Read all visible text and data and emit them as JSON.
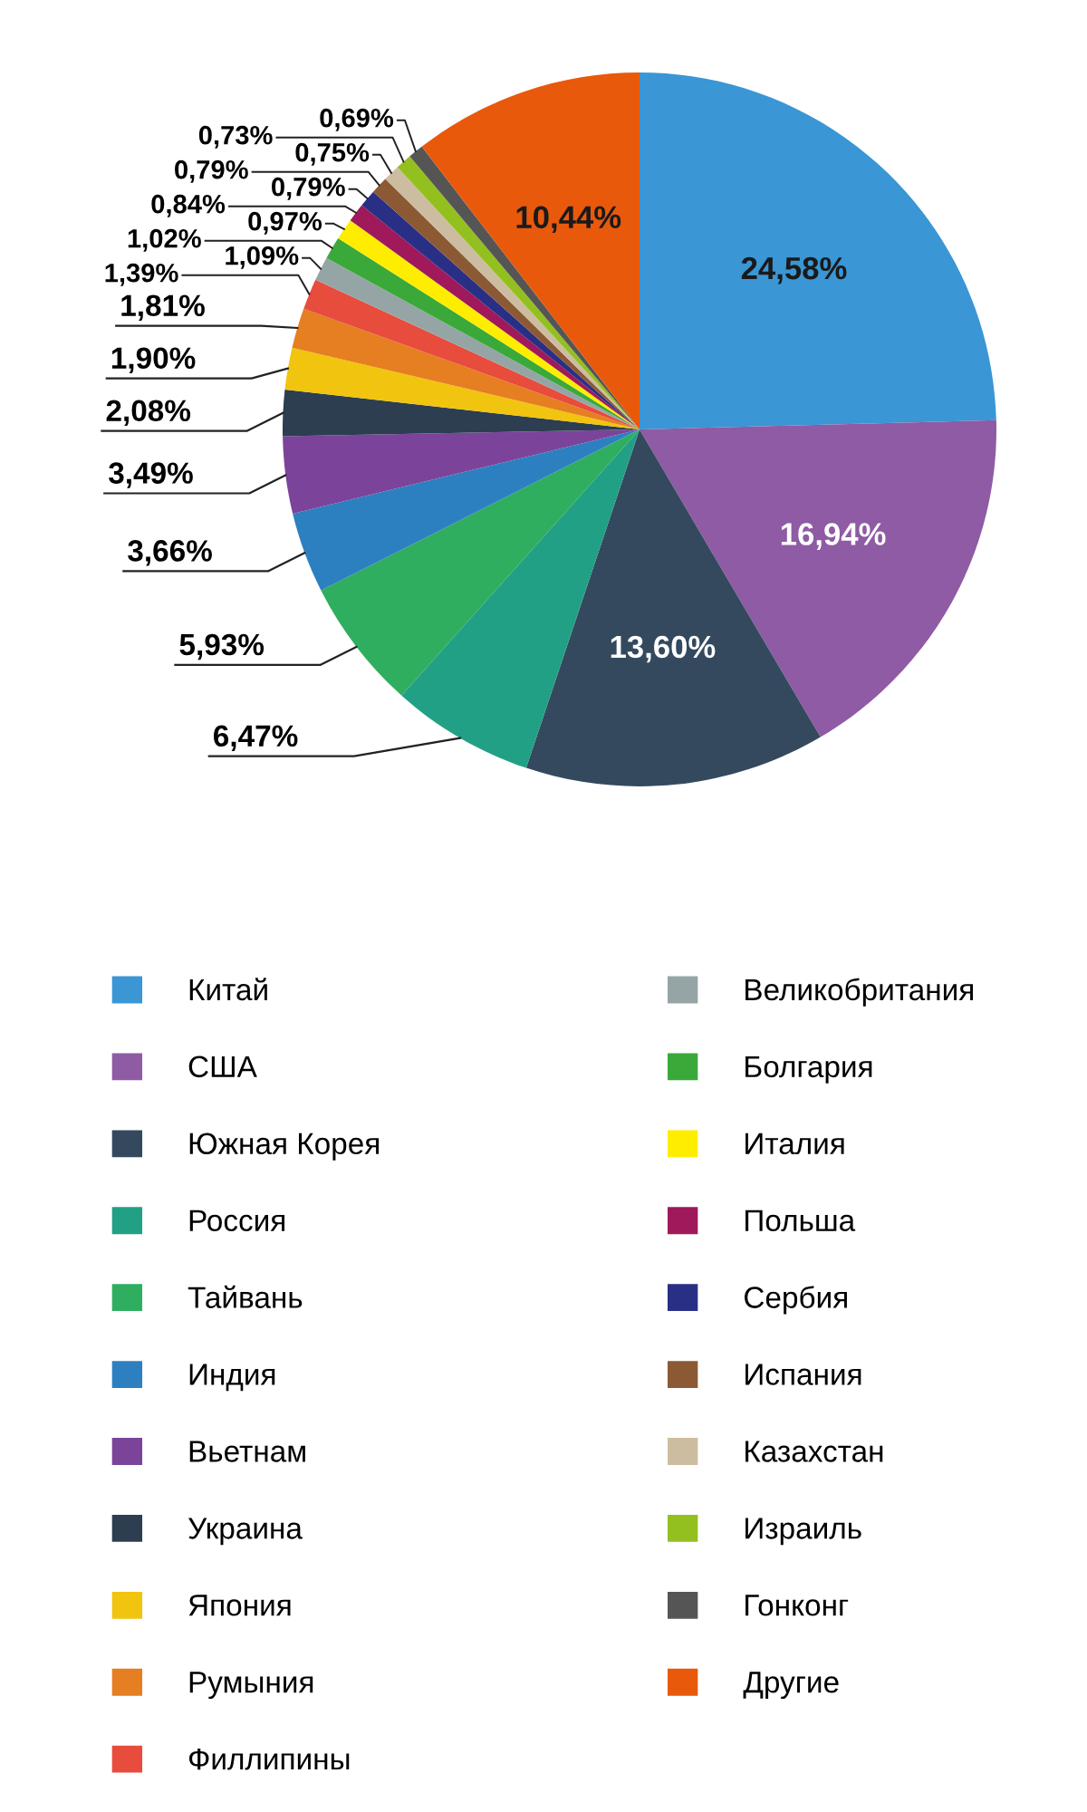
{
  "chart_data": {
    "type": "pie",
    "categories": [
      "Китай",
      "США",
      "Южная Корея",
      "Россия",
      "Тайвань",
      "Индия",
      "Вьетнам",
      "Украина",
      "Япония",
      "Румыния",
      "Филлипины",
      "Великобритания",
      "Болгария",
      "Италия",
      "Польша",
      "Сербия",
      "Испания",
      "Казахстан",
      "Израиль",
      "Гонконг",
      "Другие"
    ],
    "values": [
      24.58,
      16.94,
      13.6,
      6.47,
      5.93,
      3.66,
      3.49,
      2.08,
      1.9,
      1.81,
      1.39,
      1.09,
      1.02,
      0.97,
      0.84,
      0.79,
      0.79,
      0.75,
      0.73,
      0.69,
      10.44
    ],
    "value_labels": [
      "24,58%",
      "16,94%",
      "13,60%",
      "6,47%",
      "5,93%",
      "3,66%",
      "3,49%",
      "2,08%",
      "1,90%",
      "1,81%",
      "1,39%",
      "1,09%",
      "1,02%",
      "0,97%",
      "0,84%",
      "0,79%",
      "0,79%",
      "0,75%",
      "0,73%",
      "0,69%",
      "10,44%"
    ],
    "colors": [
      "#3a96d4",
      "#8e5ba4",
      "#34495e",
      "#22a085",
      "#2fae60",
      "#2d80c0",
      "#7b449a",
      "#2c3e50",
      "#f1c40f",
      "#e67e22",
      "#e74c3c",
      "#95a5a6",
      "#3aa93a",
      "#ffed00",
      "#a0195a",
      "#2a2f86",
      "#8b5a35",
      "#cdbda0",
      "#93c01f",
      "#555555",
      "#e8590c"
    ],
    "legend": "bottom"
  }
}
